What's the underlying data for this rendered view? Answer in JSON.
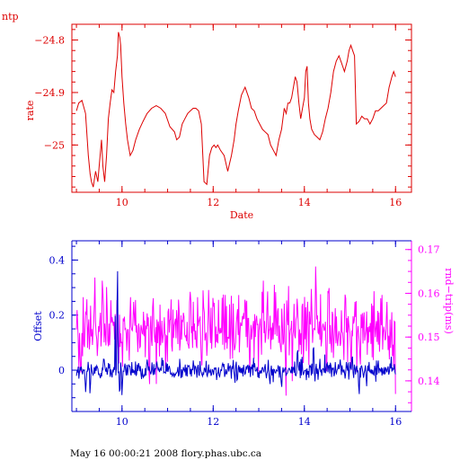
{
  "chart_data": [
    {
      "type": "line",
      "title": "ntp",
      "xlabel": "Date",
      "ylabel": "rate",
      "xlim": [
        8.9,
        16.35
      ],
      "ylim": [
        -25.09,
        -24.77
      ],
      "xticks": [
        10,
        12,
        14,
        16
      ],
      "xtick_labels": [
        "10",
        "12",
        "14",
        "16"
      ],
      "yticks": [
        -24.8,
        -24.9,
        -25
      ],
      "ytick_labels": [
        "−24.8",
        "−24.9",
        "−25"
      ],
      "grid": false,
      "color": "#dd0000",
      "series": [
        {
          "color": "#dd0000",
          "x": [
            9.0,
            9.05,
            9.12,
            9.2,
            9.26,
            9.3,
            9.33,
            9.37,
            9.42,
            9.47,
            9.5,
            9.55,
            9.58,
            9.62,
            9.66,
            9.7,
            9.74,
            9.78,
            9.82,
            9.86,
            9.9,
            9.92,
            9.95,
            9.97,
            10.0,
            10.04,
            10.08,
            10.12,
            10.18,
            10.24,
            10.3,
            10.38,
            10.46,
            10.55,
            10.65,
            10.75,
            10.85,
            10.95,
            11.05,
            11.15,
            11.2,
            11.26,
            11.32,
            11.38,
            11.44,
            11.5,
            11.56,
            11.62,
            11.68,
            11.74,
            11.8,
            11.86,
            11.92,
            11.97,
            12.02,
            12.06,
            12.1,
            12.16,
            12.24,
            12.32,
            12.4,
            12.46,
            12.5,
            12.55,
            12.62,
            12.7,
            12.78,
            12.84,
            12.9,
            12.96,
            13.02,
            13.08,
            13.14,
            13.2,
            13.26,
            13.32,
            13.38,
            13.44,
            13.5,
            13.56,
            13.6,
            13.64,
            13.68,
            13.72,
            13.76,
            13.8,
            13.84,
            13.88,
            13.92,
            13.96,
            14.0,
            14.03,
            14.06,
            14.09,
            14.12,
            14.16,
            14.22,
            14.28,
            14.34,
            14.4,
            14.46,
            14.52,
            14.58,
            14.64,
            14.7,
            14.76,
            14.82,
            14.88,
            14.94,
            14.98,
            15.02,
            15.06,
            15.1,
            15.14,
            15.2,
            15.26,
            15.32,
            15.38,
            15.44,
            15.5,
            15.56,
            15.62,
            15.68,
            15.74,
            15.8,
            15.86,
            15.92,
            15.96,
            16.0
          ],
          "y": [
            -24.935,
            -24.92,
            -24.915,
            -24.94,
            -25.02,
            -25.055,
            -25.07,
            -25.08,
            -25.05,
            -25.07,
            -25.04,
            -24.99,
            -25.04,
            -25.07,
            -25.02,
            -24.95,
            -24.92,
            -24.895,
            -24.9,
            -24.86,
            -24.83,
            -24.785,
            -24.795,
            -24.81,
            -24.87,
            -24.92,
            -24.96,
            -24.99,
            -25.02,
            -25.01,
            -24.99,
            -24.97,
            -24.955,
            -24.94,
            -24.93,
            -24.925,
            -24.93,
            -24.94,
            -24.965,
            -24.975,
            -24.99,
            -24.985,
            -24.96,
            -24.95,
            -24.94,
            -24.935,
            -24.93,
            -24.93,
            -24.935,
            -24.96,
            -25.07,
            -25.075,
            -25.02,
            -25.005,
            -25.0,
            -25.005,
            -25.0,
            -25.01,
            -25.02,
            -25.05,
            -25.02,
            -24.99,
            -24.96,
            -24.935,
            -24.905,
            -24.89,
            -24.91,
            -24.93,
            -24.935,
            -24.95,
            -24.96,
            -24.97,
            -24.975,
            -24.98,
            -25.0,
            -25.01,
            -25.02,
            -24.99,
            -24.97,
            -24.93,
            -24.94,
            -24.92,
            -24.92,
            -24.91,
            -24.89,
            -24.87,
            -24.88,
            -24.92,
            -24.95,
            -24.93,
            -24.91,
            -24.86,
            -24.85,
            -24.92,
            -24.95,
            -24.97,
            -24.98,
            -24.985,
            -24.99,
            -24.975,
            -24.95,
            -24.93,
            -24.9,
            -24.86,
            -24.84,
            -24.83,
            -24.845,
            -24.86,
            -24.84,
            -24.82,
            -24.81,
            -24.82,
            -24.83,
            -24.96,
            -24.955,
            -24.945,
            -24.95,
            -24.95,
            -24.96,
            -24.95,
            -24.935,
            -24.935,
            -24.93,
            -24.925,
            -24.92,
            -24.89,
            -24.87,
            -24.86,
            -24.87
          ]
        }
      ]
    },
    {
      "type": "line",
      "title": "",
      "xlabel": "",
      "ylabel": "Offset",
      "ylabel_right": "rnd−trip(ms)",
      "xlim": [
        8.9,
        16.35
      ],
      "ylim": [
        -0.15,
        0.47
      ],
      "ylim_right": [
        0.133,
        0.172
      ],
      "xticks": [
        10,
        12,
        14,
        16
      ],
      "xtick_labels": [
        "10",
        "12",
        "14",
        "16"
      ],
      "yticks": [
        0.4,
        0.2,
        0
      ],
      "ytick_labels": [
        "0.4",
        "0.2",
        "0"
      ],
      "yticks_right": [
        0.17,
        0.16,
        0.15,
        0.14
      ],
      "ytick_labels_right": [
        "0.17",
        "0.16",
        "0.15",
        "0.14"
      ],
      "grid": false,
      "series": [
        {
          "axis": "left",
          "color": "#0000cc",
          "baseline": 0.0,
          "noise": 0.025,
          "spikes": [
            [
              9.9,
              0.44
            ],
            [
              9.85,
              0.2
            ],
            [
              9.95,
              -0.11
            ],
            [
              10.0,
              -0.1
            ],
            [
              9.6,
              0.06
            ],
            [
              9.3,
              -0.1
            ],
            [
              9.2,
              -0.09
            ],
            [
              13.5,
              -0.08
            ],
            [
              13.85,
              0.1
            ],
            [
              14.2,
              0.12
            ],
            [
              14.45,
              0.06
            ],
            [
              15.2,
              -0.11
            ],
            [
              15.05,
              0.07
            ]
          ]
        },
        {
          "axis": "right",
          "color": "#ff00ff",
          "baseline": 0.152,
          "noise": 0.006,
          "spikes": [
            [
              14.25,
              0.169
            ],
            [
              10.6,
              0.135
            ],
            [
              9.1,
              0.138
            ],
            [
              13.6,
              0.136
            ],
            [
              16.0,
              0.137
            ],
            [
              11.5,
              0.163
            ],
            [
              13.1,
              0.163
            ],
            [
              14.9,
              0.163
            ]
          ]
        }
      ]
    }
  ],
  "footer": "May 16 00:00:21 2008 flory.phas.ubc.ca"
}
